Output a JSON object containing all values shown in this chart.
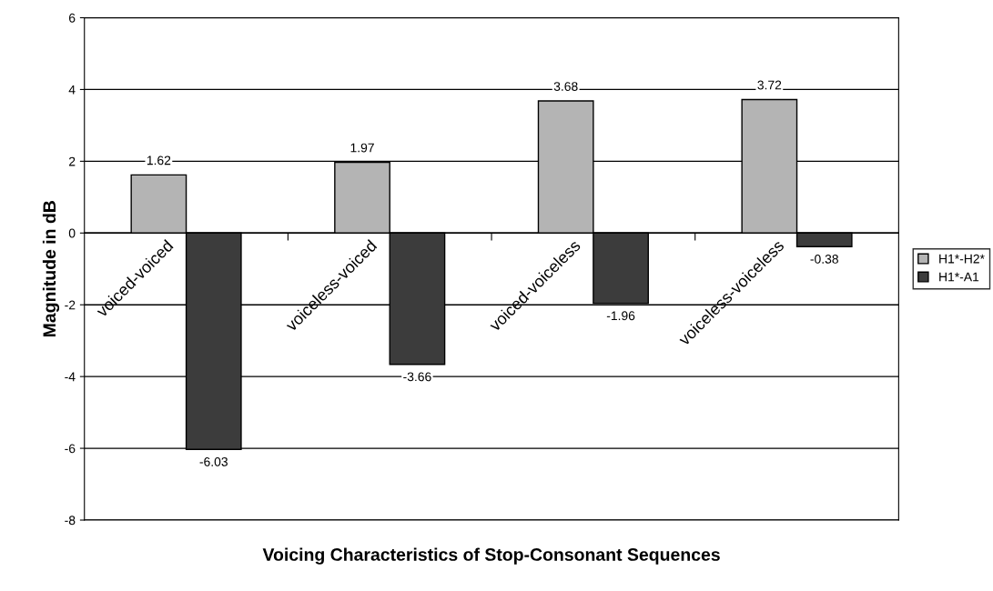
{
  "chart_data": {
    "type": "bar",
    "xlabel": "Voicing Characteristics of Stop-Consonant Sequences",
    "ylabel": "Magnitude in dB",
    "categories": [
      "voiced-voiced",
      "voiceless-voiced",
      "voiced-voiceless",
      "voiceless-voiceless"
    ],
    "series": [
      {
        "name": "H1*-H2*",
        "color": "#b4b4b4",
        "values": [
          1.62,
          1.97,
          3.68,
          3.72
        ]
      },
      {
        "name": "H1*-A1",
        "color": "#3c3c3c",
        "values": [
          -6.03,
          -3.66,
          -1.96,
          -0.38
        ]
      }
    ],
    "ylim": [
      -8,
      6
    ],
    "yticks": [
      -8,
      -6,
      -4,
      -2,
      0,
      2,
      4,
      6
    ],
    "grid": "y",
    "legend": "right",
    "data_labels": true
  }
}
